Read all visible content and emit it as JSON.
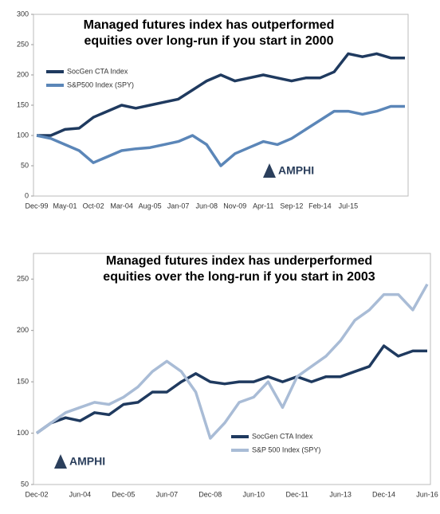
{
  "chart_data": [
    {
      "type": "line",
      "title": "Managed futures index has outperformed equities over long-run if you start in 2000",
      "annotation": "AMPHI",
      "categories": [
        "Dec-99",
        null,
        "May-01",
        null,
        "Oct-02",
        null,
        "Mar-04",
        null,
        "Aug-05",
        null,
        "Jan-07",
        null,
        "Jun-08",
        null,
        "Nov-09",
        null,
        "Apr-11",
        null,
        "Sep-12",
        null,
        "Feb-14",
        null,
        "Jul-15",
        null,
        null,
        null,
        null
      ],
      "series": [
        {
          "name": "SocGen CTA Index",
          "color": "#1f3a5f",
          "values": [
            100,
            100,
            110,
            112,
            130,
            140,
            150,
            145,
            150,
            155,
            160,
            175,
            190,
            200,
            190,
            195,
            200,
            195,
            190,
            195,
            195,
            205,
            235,
            230,
            235,
            228,
            228
          ]
        },
        {
          "name": "S&P500 Index (SPY)",
          "color": "#5b86b8",
          "values": [
            100,
            95,
            85,
            75,
            55,
            65,
            75,
            78,
            80,
            85,
            90,
            100,
            85,
            50,
            70,
            80,
            90,
            85,
            95,
            110,
            125,
            140,
            140,
            135,
            140,
            148,
            148
          ]
        }
      ],
      "ylim": [
        0,
        300
      ],
      "yticks": [
        0,
        50,
        100,
        150,
        200,
        250,
        300
      ],
      "legend": "upper-left",
      "grid": false
    },
    {
      "type": "line",
      "title": "Managed futures index has underperformed equities over the long-run if you start in 2003",
      "annotation": "AMPHI",
      "categories": [
        "Dec-02",
        null,
        null,
        "Jun-04",
        null,
        null,
        "Dec-05",
        null,
        null,
        "Jun-07",
        null,
        null,
        "Dec-08",
        null,
        null,
        "Jun-10",
        null,
        null,
        "Dec-11",
        null,
        null,
        "Jun-13",
        null,
        null,
        "Dec-14",
        null,
        null,
        "Jun-16"
      ],
      "series": [
        {
          "name": "SocGen CTA Index",
          "color": "#1f3a5f",
          "values": [
            100,
            110,
            115,
            112,
            120,
            118,
            128,
            130,
            140,
            140,
            150,
            158,
            150,
            148,
            150,
            150,
            155,
            150,
            155,
            150,
            155,
            155,
            160,
            165,
            185,
            175,
            180,
            180
          ]
        },
        {
          "name": "S&P 500 Index (SPY)",
          "color": "#a9bcd6",
          "values": [
            100,
            110,
            120,
            125,
            130,
            128,
            135,
            145,
            160,
            170,
            160,
            140,
            95,
            110,
            130,
            135,
            150,
            125,
            155,
            165,
            175,
            190,
            210,
            220,
            235,
            235,
            220,
            245
          ]
        }
      ],
      "ylim": [
        50,
        275
      ],
      "yticks": [
        50,
        100,
        150,
        200,
        250
      ],
      "legend": "lower-center",
      "grid": false
    }
  ]
}
